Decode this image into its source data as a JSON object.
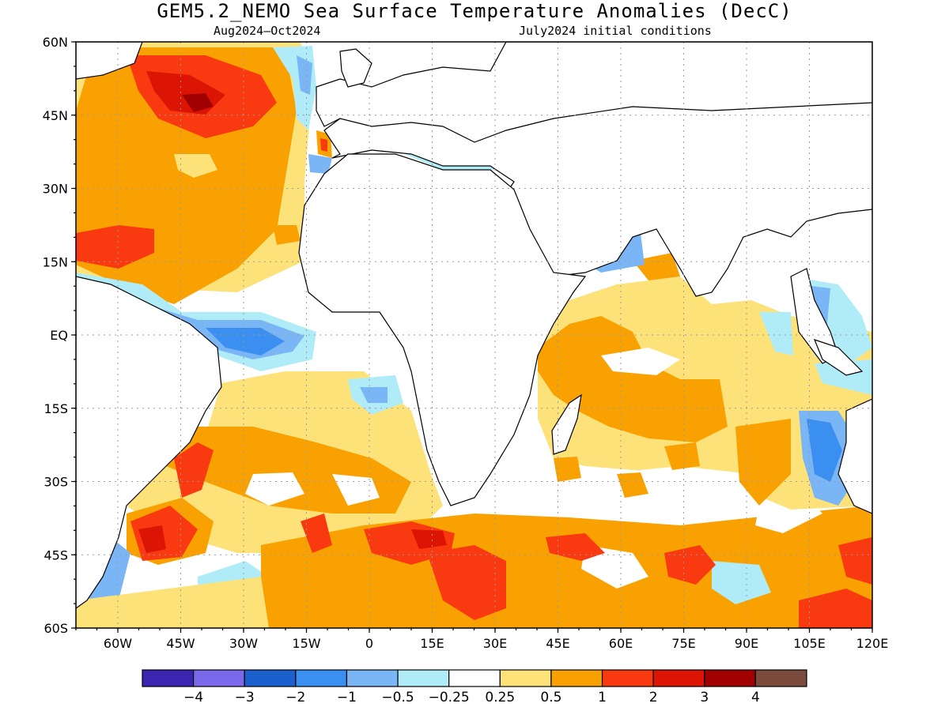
{
  "title": "GEM5.2_NEMO Sea Surface Temperature Anomalies (DecC)",
  "subtitle_left": "Aug2024–Oct2024",
  "subtitle_right": "July2024 initial conditions",
  "map": {
    "lon_range": [
      -70,
      120
    ],
    "lat_range": [
      -60,
      60
    ],
    "grid": "dotted",
    "lon_ticks": [
      {
        "value": -60,
        "label": "60W"
      },
      {
        "value": -45,
        "label": "45W"
      },
      {
        "value": -30,
        "label": "30W"
      },
      {
        "value": -15,
        "label": "15W"
      },
      {
        "value": 0,
        "label": "0"
      },
      {
        "value": 15,
        "label": "15E"
      },
      {
        "value": 30,
        "label": "30E"
      },
      {
        "value": 45,
        "label": "45E"
      },
      {
        "value": 60,
        "label": "60E"
      },
      {
        "value": 75,
        "label": "75E"
      },
      {
        "value": 90,
        "label": "90E"
      },
      {
        "value": 105,
        "label": "105E"
      },
      {
        "value": 120,
        "label": "120E"
      }
    ],
    "lat_ticks": [
      {
        "value": 60,
        "label": "60N"
      },
      {
        "value": 45,
        "label": "45N"
      },
      {
        "value": 30,
        "label": "30N"
      },
      {
        "value": 15,
        "label": "15N"
      },
      {
        "value": 0,
        "label": "EQ"
      },
      {
        "value": -15,
        "label": "15S"
      },
      {
        "value": -30,
        "label": "30S"
      },
      {
        "value": -45,
        "label": "45S"
      },
      {
        "value": -60,
        "label": "60S"
      }
    ]
  },
  "colorbar": {
    "colors": [
      "#3b24b0",
      "#7b68ea",
      "#1a5fcc",
      "#3b8ff0",
      "#7ab6f5",
      "#b0ecf7",
      "#ffffff",
      "#fde27a",
      "#f9a100",
      "#f93a10",
      "#dc1404",
      "#a00000",
      "#7a4a3c"
    ],
    "labels": [
      "−4",
      "−3",
      "−2",
      "−1",
      "−0.5",
      "−0.25",
      "0.25",
      "0.5",
      "1",
      "2",
      "3",
      "4"
    ]
  }
}
